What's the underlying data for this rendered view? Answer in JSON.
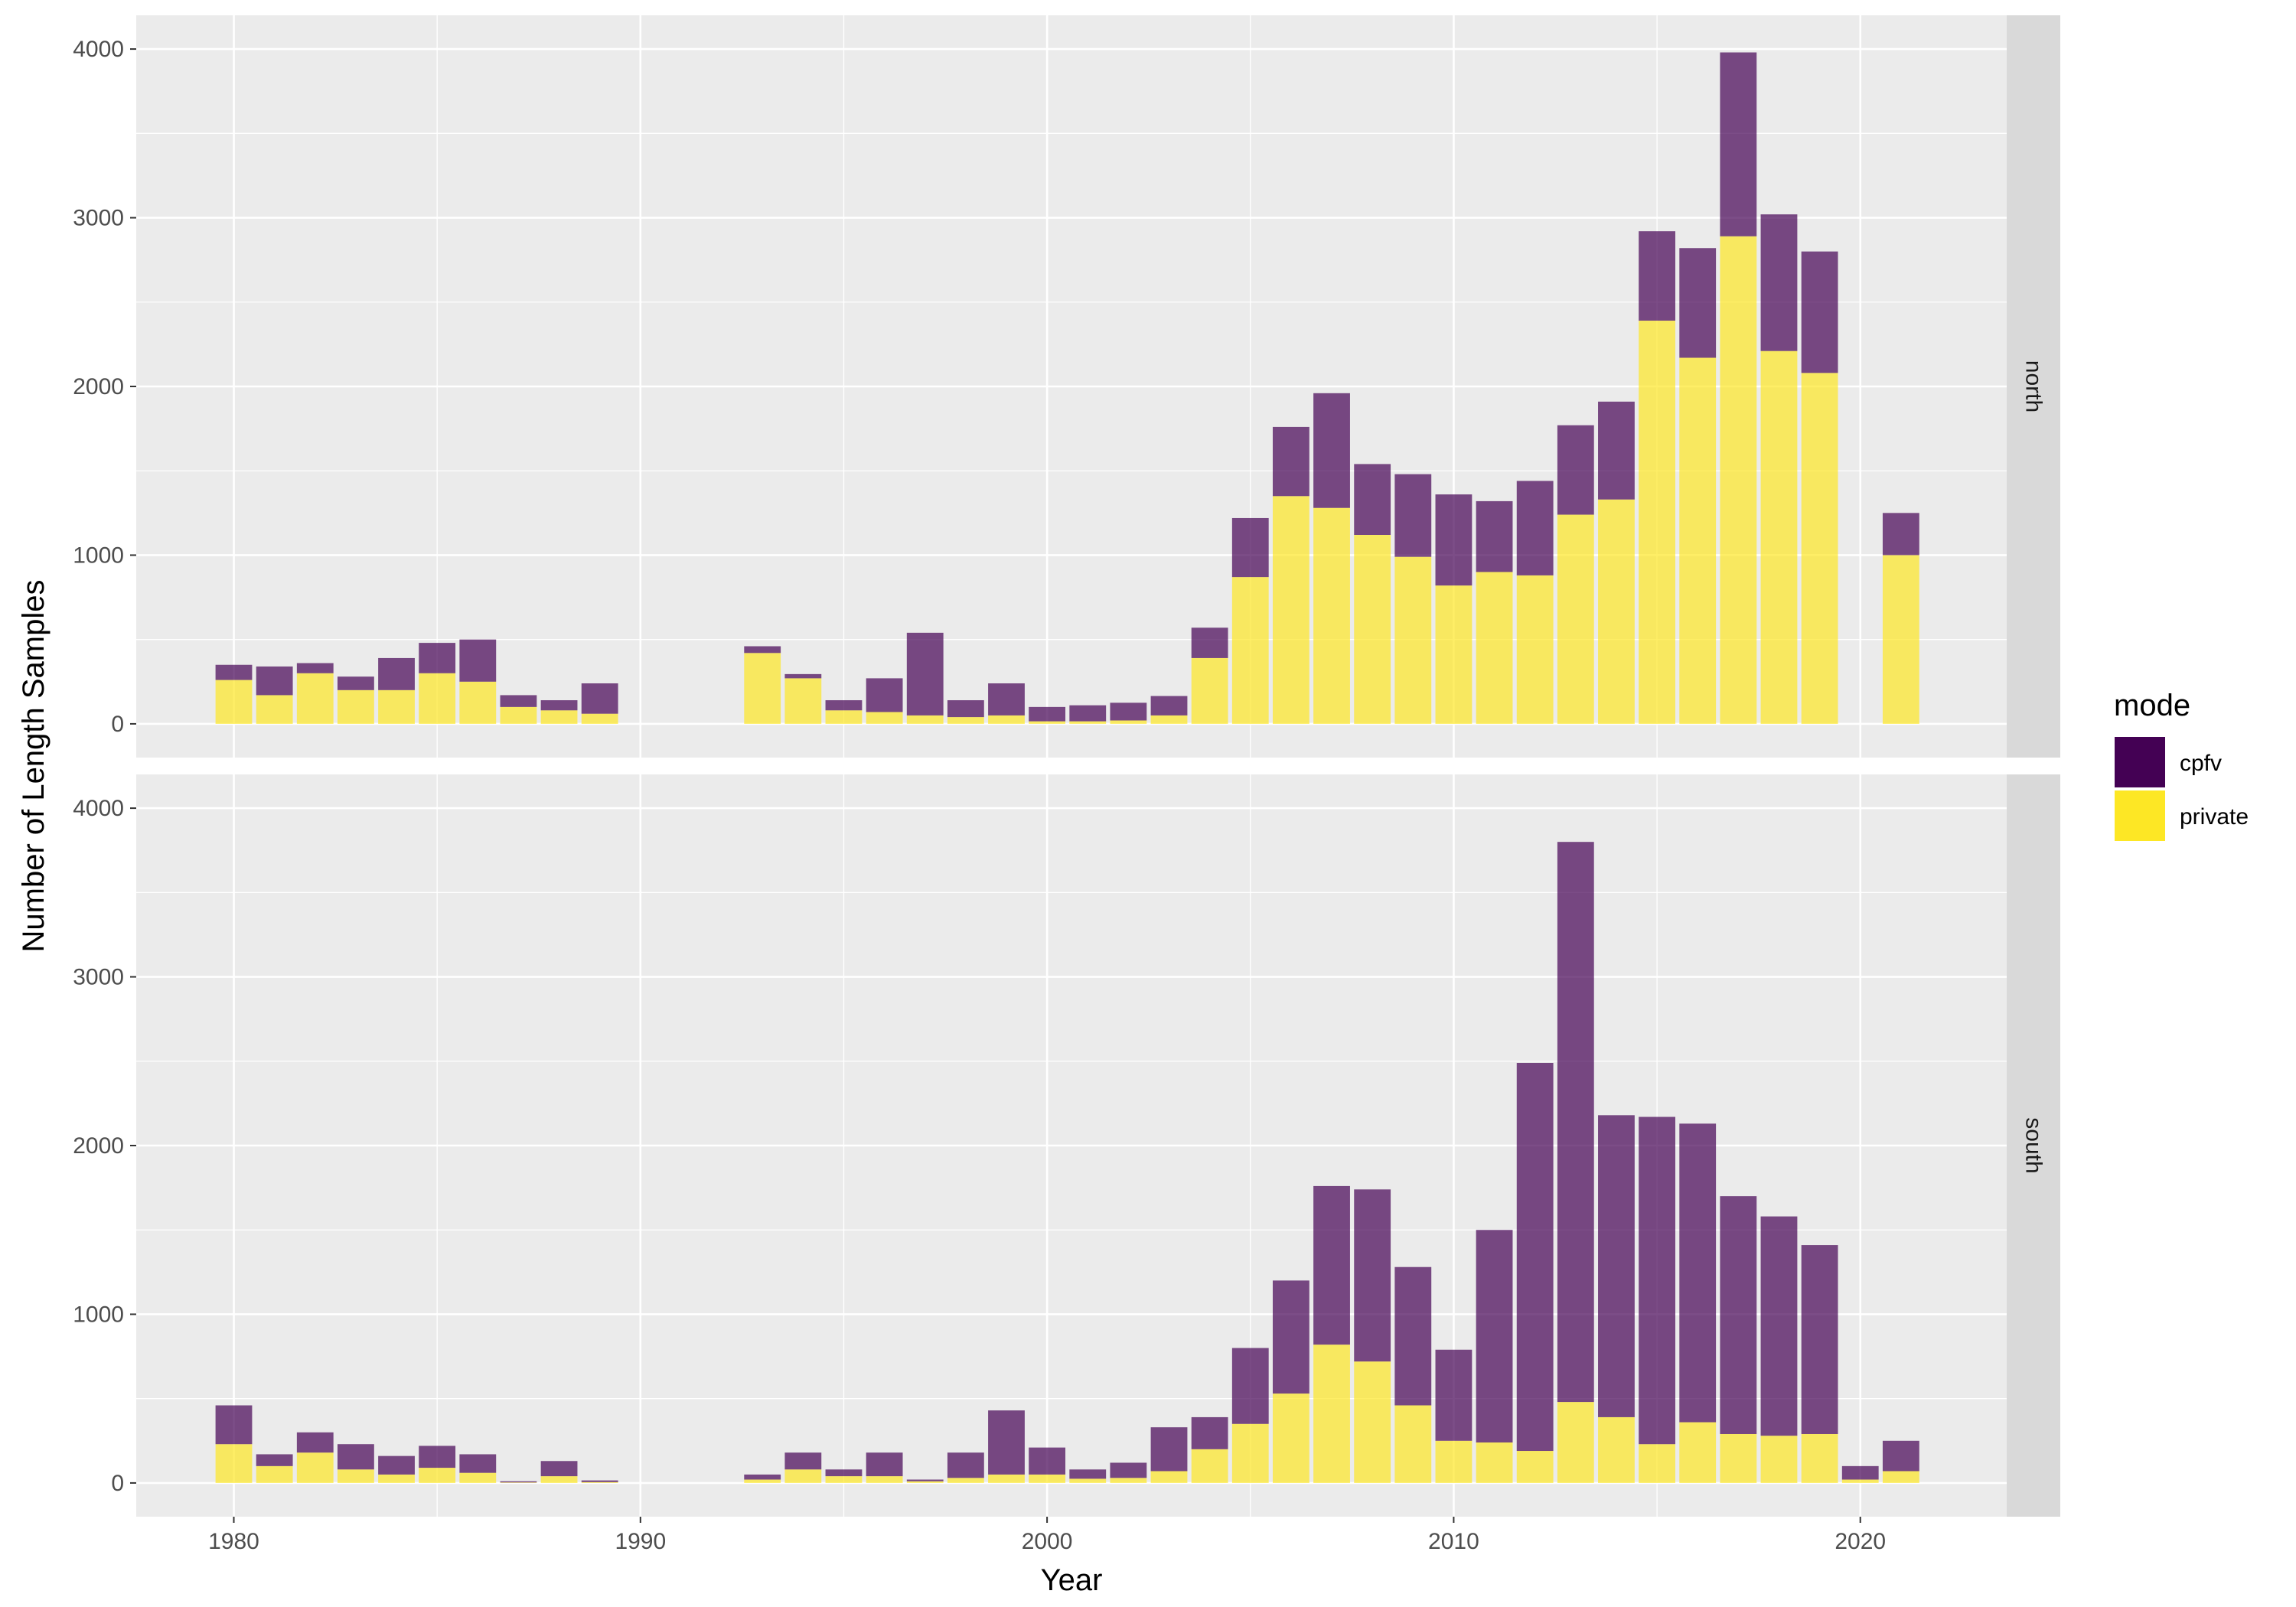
{
  "chart_data": {
    "type": "bar",
    "stacked": true,
    "xlabel": "Year",
    "ylabel": "Number of Length Samples",
    "xlim": [
      1977.6,
      2023.6
    ],
    "ylim": [
      -200,
      4200
    ],
    "x_ticks": [
      1980,
      1990,
      2000,
      2010,
      2020
    ],
    "y_ticks": [
      0,
      1000,
      2000,
      3000,
      4000
    ],
    "grid": true,
    "legend": {
      "title": "mode",
      "position": "right",
      "items": [
        {
          "name": "cpfv",
          "color": "#440154"
        },
        {
          "name": "private",
          "color": "#FDE725"
        }
      ]
    },
    "panels": [
      {
        "strip": "north",
        "data": [
          {
            "year": 1980,
            "private": 260,
            "cpfv": 90
          },
          {
            "year": 1981,
            "private": 170,
            "cpfv": 170
          },
          {
            "year": 1982,
            "private": 300,
            "cpfv": 60
          },
          {
            "year": 1983,
            "private": 200,
            "cpfv": 80
          },
          {
            "year": 1984,
            "private": 200,
            "cpfv": 190
          },
          {
            "year": 1985,
            "private": 300,
            "cpfv": 180
          },
          {
            "year": 1986,
            "private": 250,
            "cpfv": 250
          },
          {
            "year": 1987,
            "private": 100,
            "cpfv": 70
          },
          {
            "year": 1988,
            "private": 80,
            "cpfv": 60
          },
          {
            "year": 1989,
            "private": 60,
            "cpfv": 180
          },
          {
            "year": 1993,
            "private": 420,
            "cpfv": 40
          },
          {
            "year": 1994,
            "private": 270,
            "cpfv": 25
          },
          {
            "year": 1995,
            "private": 80,
            "cpfv": 60
          },
          {
            "year": 1996,
            "private": 70,
            "cpfv": 200
          },
          {
            "year": 1997,
            "private": 50,
            "cpfv": 490
          },
          {
            "year": 1998,
            "private": 40,
            "cpfv": 100
          },
          {
            "year": 1999,
            "private": 50,
            "cpfv": 190
          },
          {
            "year": 2000,
            "private": 15,
            "cpfv": 85
          },
          {
            "year": 2001,
            "private": 15,
            "cpfv": 95
          },
          {
            "year": 2002,
            "private": 20,
            "cpfv": 105
          },
          {
            "year": 2003,
            "private": 50,
            "cpfv": 115
          },
          {
            "year": 2004,
            "private": 390,
            "cpfv": 180
          },
          {
            "year": 2005,
            "private": 870,
            "cpfv": 350
          },
          {
            "year": 2006,
            "private": 1350,
            "cpfv": 410
          },
          {
            "year": 2007,
            "private": 1280,
            "cpfv": 680
          },
          {
            "year": 2008,
            "private": 1120,
            "cpfv": 420
          },
          {
            "year": 2009,
            "private": 990,
            "cpfv": 490
          },
          {
            "year": 2010,
            "private": 820,
            "cpfv": 540
          },
          {
            "year": 2011,
            "private": 900,
            "cpfv": 420
          },
          {
            "year": 2012,
            "private": 880,
            "cpfv": 560
          },
          {
            "year": 2013,
            "private": 1240,
            "cpfv": 530
          },
          {
            "year": 2014,
            "private": 1330,
            "cpfv": 580
          },
          {
            "year": 2015,
            "private": 2390,
            "cpfv": 530
          },
          {
            "year": 2016,
            "private": 2170,
            "cpfv": 650
          },
          {
            "year": 2017,
            "private": 2890,
            "cpfv": 1090
          },
          {
            "year": 2018,
            "private": 2210,
            "cpfv": 810
          },
          {
            "year": 2019,
            "private": 2080,
            "cpfv": 720
          },
          {
            "year": 2021,
            "private": 1000,
            "cpfv": 250
          }
        ]
      },
      {
        "strip": "south",
        "data": [
          {
            "year": 1980,
            "private": 230,
            "cpfv": 230
          },
          {
            "year": 1981,
            "private": 100,
            "cpfv": 70
          },
          {
            "year": 1982,
            "private": 180,
            "cpfv": 120
          },
          {
            "year": 1983,
            "private": 80,
            "cpfv": 150
          },
          {
            "year": 1984,
            "private": 50,
            "cpfv": 110
          },
          {
            "year": 1985,
            "private": 90,
            "cpfv": 130
          },
          {
            "year": 1986,
            "private": 60,
            "cpfv": 110
          },
          {
            "year": 1987,
            "private": 3,
            "cpfv": 7
          },
          {
            "year": 1988,
            "private": 40,
            "cpfv": 90
          },
          {
            "year": 1989,
            "private": 5,
            "cpfv": 10
          },
          {
            "year": 1993,
            "private": 20,
            "cpfv": 30
          },
          {
            "year": 1994,
            "private": 80,
            "cpfv": 100
          },
          {
            "year": 1995,
            "private": 40,
            "cpfv": 40
          },
          {
            "year": 1996,
            "private": 40,
            "cpfv": 140
          },
          {
            "year": 1997,
            "private": 10,
            "cpfv": 10
          },
          {
            "year": 1998,
            "private": 30,
            "cpfv": 150
          },
          {
            "year": 1999,
            "private": 50,
            "cpfv": 380
          },
          {
            "year": 2000,
            "private": 50,
            "cpfv": 160
          },
          {
            "year": 2001,
            "private": 25,
            "cpfv": 55
          },
          {
            "year": 2002,
            "private": 30,
            "cpfv": 90
          },
          {
            "year": 2003,
            "private": 70,
            "cpfv": 260
          },
          {
            "year": 2004,
            "private": 200,
            "cpfv": 190
          },
          {
            "year": 2005,
            "private": 350,
            "cpfv": 450
          },
          {
            "year": 2006,
            "private": 530,
            "cpfv": 670
          },
          {
            "year": 2007,
            "private": 820,
            "cpfv": 940
          },
          {
            "year": 2008,
            "private": 720,
            "cpfv": 1020
          },
          {
            "year": 2009,
            "private": 460,
            "cpfv": 820
          },
          {
            "year": 2010,
            "private": 250,
            "cpfv": 540
          },
          {
            "year": 2011,
            "private": 240,
            "cpfv": 1260
          },
          {
            "year": 2012,
            "private": 190,
            "cpfv": 2300
          },
          {
            "year": 2013,
            "private": 480,
            "cpfv": 3320
          },
          {
            "year": 2014,
            "private": 390,
            "cpfv": 1790
          },
          {
            "year": 2015,
            "private": 230,
            "cpfv": 1940
          },
          {
            "year": 2016,
            "private": 360,
            "cpfv": 1770
          },
          {
            "year": 2017,
            "private": 290,
            "cpfv": 1410
          },
          {
            "year": 2018,
            "private": 280,
            "cpfv": 1300
          },
          {
            "year": 2019,
            "private": 290,
            "cpfv": 1120
          },
          {
            "year": 2020,
            "private": 20,
            "cpfv": 80
          },
          {
            "year": 2021,
            "private": 70,
            "cpfv": 180
          }
        ]
      }
    ]
  }
}
